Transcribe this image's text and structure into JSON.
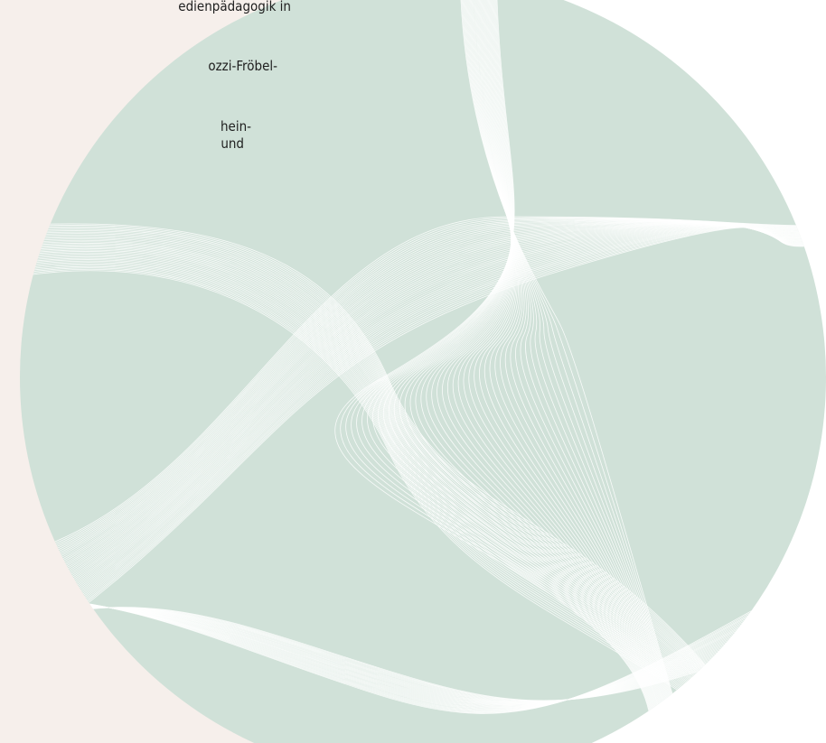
{
  "text": {
    "lines": [
      "edienpädagogik in",
      "ozzi-Fröbel-",
      "hein-",
      "und"
    ]
  }
}
